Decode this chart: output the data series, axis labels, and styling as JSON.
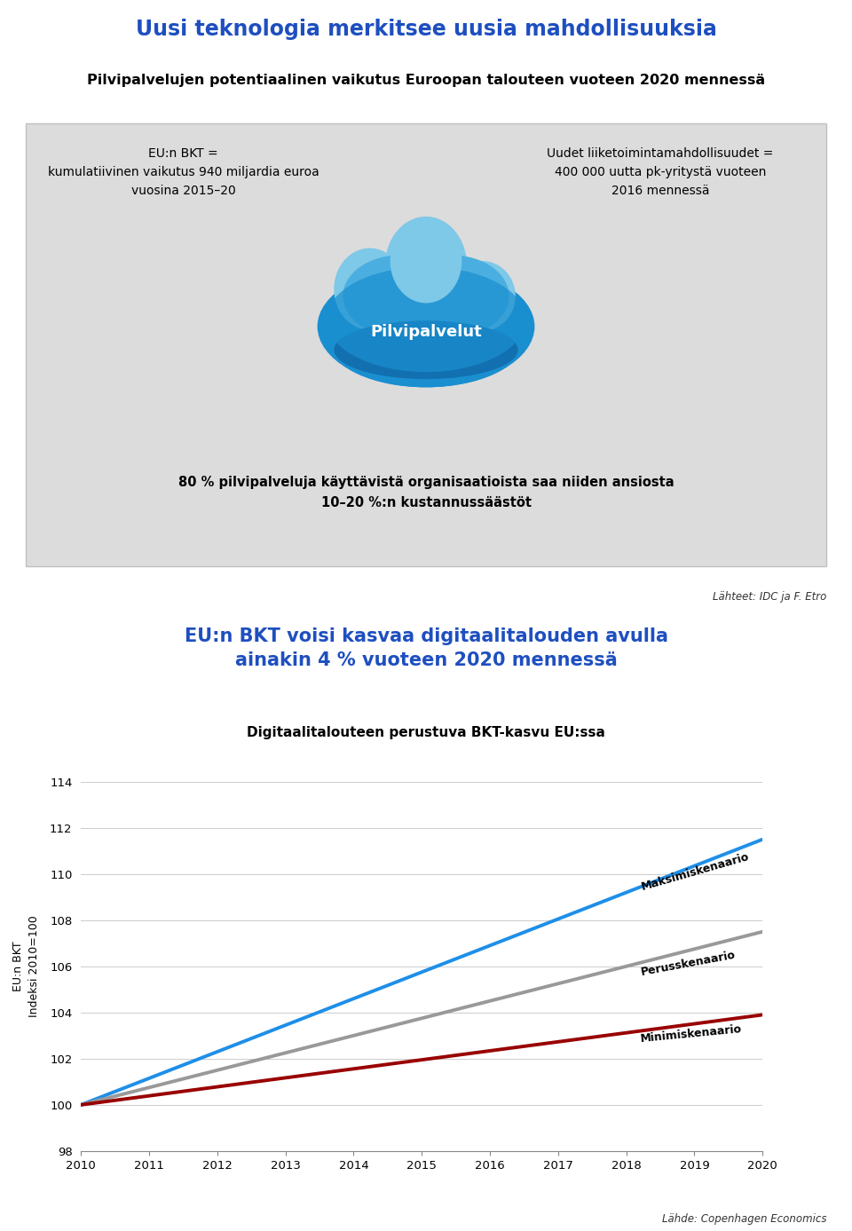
{
  "title1": "Uusi teknologia merkitsee uusia mahdollisuuksia",
  "title1_color": "#1E4FC0",
  "subtitle1": "Pilvipalvelujen potentiaalinen vaikutus Euroopan talouteen vuoteen 2020 mennessä",
  "box_bg_color": "#DCDCDC",
  "left_text_line1": "EU:n BKT =",
  "left_text_line2": "kumulatiivinen vaikutus 940 miljardia euroa",
  "left_text_line3": "vuosina 2015–20",
  "right_text_line1": "Uudet liiketoimintamahdollisuudet =",
  "right_text_line2": "400 000 uutta pk-yritystä vuoteen",
  "right_text_line3": "2016 mennessä",
  "cloud_label": "Pilvipalvelut",
  "bottom_text_line1": "80 % pilvipalveluja käyttävistä organisaatioista saa niiden ansiosta",
  "bottom_text_line2": "10–20 %:n kustannussäästöt",
  "source1": "Lähteet: IDC ja F. Etro",
  "title2_line1": "EU:n BKT voisi kasvaa digitaalitalouden avulla",
  "title2_line2": "ainakin 4 % vuoteen 2020 mennessä",
  "title2_color": "#1E4FC0",
  "chart_title": "Digitaalitalouteen perustuva BKT-kasvu EU:ssa",
  "ylabel_line1": "EU:n BKT",
  "ylabel_line2": "Indeksi 2010=100",
  "years": [
    2010,
    2011,
    2012,
    2013,
    2014,
    2015,
    2016,
    2017,
    2018,
    2019,
    2020
  ],
  "max_values": [
    100,
    101.15,
    102.3,
    103.45,
    104.6,
    105.75,
    106.9,
    108.05,
    109.2,
    110.35,
    111.5
  ],
  "base_values": [
    100,
    100.75,
    101.5,
    102.25,
    103.0,
    103.75,
    104.5,
    105.25,
    106.0,
    106.75,
    107.5
  ],
  "min_values": [
    100,
    100.39,
    100.78,
    101.17,
    101.56,
    101.95,
    102.34,
    102.73,
    103.12,
    103.51,
    103.9
  ],
  "max_color": "#1E8FE8",
  "base_color": "#999999",
  "min_color": "#990000",
  "max_label": "Maksimiskenaario",
  "base_label": "Perusskenaario",
  "min_label": "Minimiskenaario",
  "ylim": [
    98,
    114
  ],
  "yticks": [
    98,
    100,
    102,
    104,
    106,
    108,
    110,
    112,
    114
  ],
  "source2": "Lähde: Copenhagen Economics",
  "background_color": "#FFFFFF",
  "cloud_light": "#7EC8E8",
  "cloud_dark": "#1A8FD0",
  "cloud_mid": "#4AAEE0"
}
